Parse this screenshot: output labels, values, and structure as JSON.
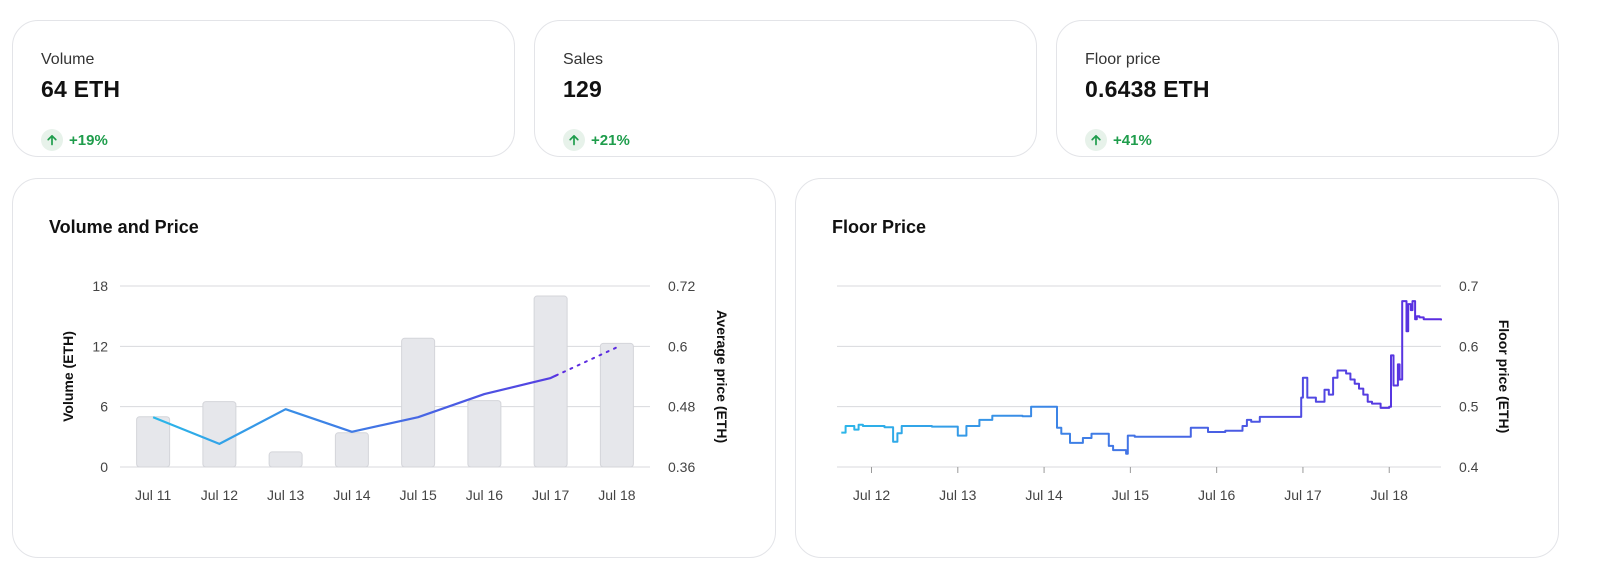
{
  "stats": [
    {
      "label": "Volume",
      "value": "64 ETH",
      "change": "+19%"
    },
    {
      "label": "Sales",
      "value": "129",
      "change": "+21%"
    },
    {
      "label": "Floor price",
      "value": "0.6438 ETH",
      "change": "+41%"
    }
  ],
  "colors": {
    "positive": "#1f9d4c",
    "positive_bg": "#e7f2ea",
    "bar": "#e6e7eb",
    "line_start": "#2bb7e9",
    "line_end": "#5b2be0",
    "grid": "#d8d9dd"
  },
  "icons": {
    "change": "arrow-up-icon"
  },
  "chart_data": [
    {
      "type": "bar",
      "title": "Volume and Price",
      "categories": [
        "Jul 11",
        "Jul 12",
        "Jul 13",
        "Jul 14",
        "Jul 15",
        "Jul 16",
        "Jul 17",
        "Jul 18"
      ],
      "ylabel": "Volume (ETH)",
      "y2label": "Average price (ETH)",
      "ylim": [
        0,
        18
      ],
      "yticks": [
        "0",
        "6",
        "12",
        "18"
      ],
      "y2lim": [
        0.36,
        0.72
      ],
      "y2ticks": [
        "0.36",
        "0.48",
        "0.6",
        "0.72"
      ],
      "grid": true,
      "series": [
        {
          "type": "bar",
          "values": [
            5,
            6.5,
            1.5,
            3.4,
            12.8,
            6.6,
            17,
            12.3
          ]
        },
        {
          "type": "line",
          "values": [
            0.459,
            0.406,
            0.475,
            0.43,
            0.459,
            0.505,
            0.537,
            0.598
          ]
        }
      ]
    },
    {
      "type": "line",
      "title": "Floor Price",
      "xticks": [
        "Jul 12",
        "Jul 13",
        "Jul 14",
        "Jul 15",
        "Jul 16",
        "Jul 17",
        "Jul 18"
      ],
      "ylabel": "Floor price (ETH)",
      "ylim": [
        0.4,
        0.7
      ],
      "yticks": [
        "0.4",
        "0.5",
        "0.6",
        "0.7"
      ],
      "grid": true,
      "x": [
        11.65,
        11.7,
        11.75,
        11.8,
        11.85,
        11.9,
        11.95,
        12.05,
        12.15,
        12.25,
        12.3,
        12.35,
        12.4,
        12.5,
        12.7,
        12.95,
        13.0,
        13.05,
        13.1,
        13.15,
        13.25,
        13.4,
        13.6,
        13.75,
        13.85,
        13.9,
        13.95,
        14.1,
        14.15,
        14.2,
        14.3,
        14.35,
        14.45,
        14.55,
        14.65,
        14.75,
        14.8,
        14.85,
        14.95,
        14.97,
        15.05,
        15.3,
        15.6,
        15.7,
        15.75,
        15.9,
        16.0,
        16.1,
        16.2,
        16.3,
        16.35,
        16.4,
        16.5,
        16.75,
        16.95,
        16.98,
        17.0,
        17.05,
        17.1,
        17.15,
        17.2,
        17.25,
        17.3,
        17.35,
        17.4,
        17.5,
        17.55,
        17.6,
        17.65,
        17.7,
        17.75,
        17.8,
        17.9,
        17.95,
        18.0,
        18.02,
        18.05,
        18.1,
        18.12,
        18.15,
        18.2,
        18.22,
        18.25,
        18.27,
        18.3,
        18.32,
        18.35,
        18.4,
        18.45,
        18.5,
        18.6
      ],
      "y": [
        0.457,
        0.468,
        0.468,
        0.462,
        0.47,
        0.468,
        0.468,
        0.468,
        0.466,
        0.442,
        0.456,
        0.468,
        0.468,
        0.468,
        0.467,
        0.467,
        0.452,
        0.452,
        0.468,
        0.468,
        0.478,
        0.485,
        0.485,
        0.484,
        0.5,
        0.5,
        0.5,
        0.5,
        0.465,
        0.455,
        0.44,
        0.44,
        0.448,
        0.455,
        0.455,
        0.435,
        0.428,
        0.428,
        0.422,
        0.452,
        0.45,
        0.45,
        0.45,
        0.465,
        0.465,
        0.458,
        0.458,
        0.46,
        0.46,
        0.468,
        0.478,
        0.475,
        0.483,
        0.483,
        0.483,
        0.515,
        0.548,
        0.515,
        0.515,
        0.508,
        0.508,
        0.528,
        0.52,
        0.548,
        0.56,
        0.555,
        0.545,
        0.538,
        0.53,
        0.52,
        0.508,
        0.505,
        0.498,
        0.498,
        0.5,
        0.585,
        0.535,
        0.57,
        0.545,
        0.675,
        0.625,
        0.67,
        0.66,
        0.675,
        0.645,
        0.65,
        0.648,
        0.645,
        0.645,
        0.645,
        0.643
      ]
    }
  ]
}
